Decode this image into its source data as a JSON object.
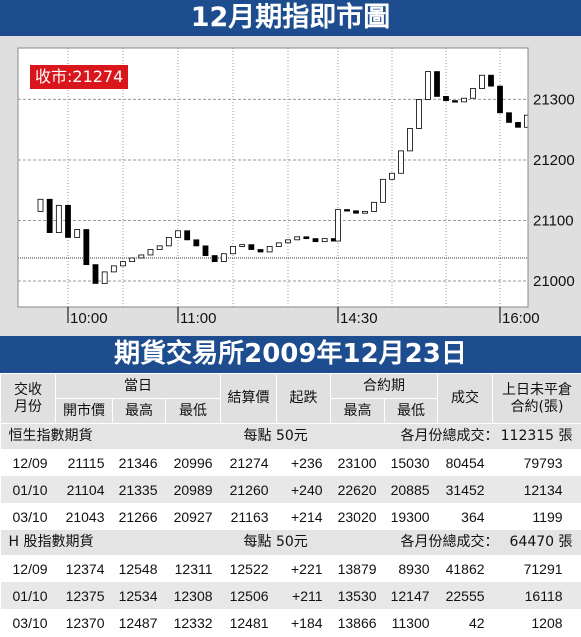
{
  "chart_data": {
    "type": "line",
    "title": "12月期指即市圖",
    "annotation": "收市:21274",
    "xlabel": "",
    "ylabel": "",
    "x": [
      "09:45",
      "09:50",
      "09:55",
      "10:00",
      "10:05",
      "10:10",
      "10:15",
      "10:20",
      "10:25",
      "10:30",
      "10:35",
      "10:40",
      "10:45",
      "10:50",
      "10:55",
      "11:00",
      "11:05",
      "11:10",
      "11:15",
      "11:20",
      "11:25",
      "11:30",
      "11:35",
      "11:40",
      "11:45",
      "11:50",
      "11:55",
      "12:00",
      "12:05",
      "12:10",
      "12:15",
      "12:20",
      "12:25",
      "14:30",
      "14:35",
      "14:40",
      "14:45",
      "14:50",
      "14:55",
      "15:00",
      "15:05",
      "15:10",
      "15:15",
      "15:20",
      "15:25",
      "15:30",
      "15:35",
      "15:40",
      "15:45",
      "15:50",
      "15:55",
      "16:00",
      "16:05",
      "16:10",
      "16:15"
    ],
    "series": [
      {
        "values": [
          21135,
          21080,
          21125,
          21072,
          21085,
          21027,
          20996,
          21015,
          21025,
          21032,
          21038,
          21043,
          21052,
          21058,
          21072,
          21083,
          21068,
          21058,
          21042,
          21032,
          21045,
          21057,
          21060,
          21052,
          21048,
          21057,
          21063,
          21068,
          21073,
          21070,
          21065,
          21070,
          21066,
          21118,
          21116,
          21112,
          21115,
          21130,
          21168,
          21178,
          21215,
          21252,
          21300,
          21346,
          21305,
          21298,
          21296,
          21302,
          21318,
          21340,
          21322,
          21278,
          21262,
          21254,
          21274
        ]
      }
    ],
    "open": 21115,
    "reference_line": 21038,
    "yticks": [
      21300,
      21200,
      21100,
      21000
    ],
    "xticks": [
      "10:00",
      "11:00",
      "14:30",
      "16:00"
    ],
    "ylim": [
      20957,
      21385
    ],
    "grid": true
  },
  "exchange": {
    "title": "期貨交易所2009年12月23日"
  },
  "table": {
    "headers": {
      "month_line1": "交收",
      "month_line2": "月份",
      "day": "當日",
      "open": "開市價",
      "high": "最高",
      "low": "最低",
      "settle": "結算價",
      "change": "起跌",
      "contract": "合約期",
      "contract_high": "最高",
      "contract_low": "最低",
      "volume": "成交",
      "oi_line1": "上日未平倉",
      "oi_line2": "合約(張)"
    },
    "groups": [
      {
        "name": "恒生指數期貨",
        "point_value": "每點 50元",
        "total_label": "各月份總成交：",
        "total": "112315 張",
        "rows": [
          [
            "12/09",
            "21115",
            "21346",
            "20996",
            "21274",
            "+236",
            "23100",
            "15030",
            "80454",
            "79793"
          ],
          [
            "01/10",
            "21104",
            "21335",
            "20989",
            "21260",
            "+240",
            "22620",
            "20885",
            "31452",
            "12134"
          ],
          [
            "03/10",
            "21043",
            "21266",
            "20927",
            "21163",
            "+214",
            "23020",
            "19300",
            "364",
            "1199"
          ]
        ]
      },
      {
        "name": "H 股指數期貨",
        "point_value": "每點 50元",
        "total_label": "各月份總成交：",
        "total": "64470 張",
        "rows": [
          [
            "12/09",
            "12374",
            "12548",
            "12311",
            "12522",
            "+221",
            "13879",
            "8930",
            "41862",
            "71291"
          ],
          [
            "01/10",
            "12375",
            "12534",
            "12308",
            "12506",
            "+211",
            "13530",
            "12147",
            "22555",
            "16118"
          ],
          [
            "03/10",
            "12370",
            "12487",
            "12332",
            "12481",
            "+184",
            "13866",
            "11300",
            "42",
            "1208"
          ]
        ]
      }
    ]
  },
  "colors": {
    "header_bar": "#1d4d8e",
    "close_label": "#d9161c",
    "chart_panel": "#dfdfdf"
  }
}
